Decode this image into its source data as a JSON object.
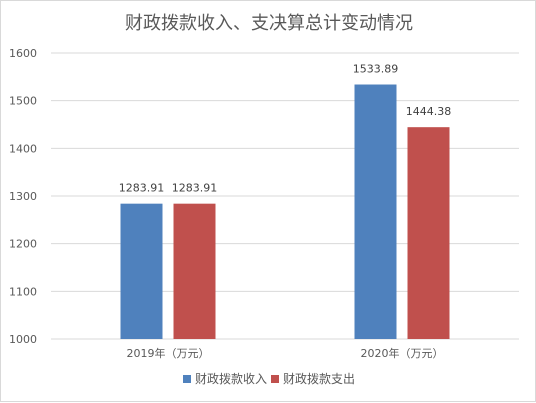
{
  "chart_data": {
    "type": "bar",
    "title": "财政拨款收入、支决算总计变动情况",
    "categories": [
      "2019年（万元）",
      "2020年（万元）"
    ],
    "series": [
      {
        "name": "财政拨款收入",
        "values": [
          1283.91,
          1533.89
        ],
        "labels": [
          "1283.91",
          "1533.89"
        ],
        "color": "#4f81bd"
      },
      {
        "name": "财政拨款支出",
        "values": [
          1283.91,
          1444.38
        ],
        "labels": [
          "1283.91",
          "1444.38"
        ],
        "color": "#c0504d"
      }
    ],
    "ylim": [
      1000,
      1600
    ],
    "yticks": [
      1000,
      1100,
      1200,
      1300,
      1400,
      1500,
      1600
    ],
    "grid": true,
    "legend_position": "bottom"
  }
}
